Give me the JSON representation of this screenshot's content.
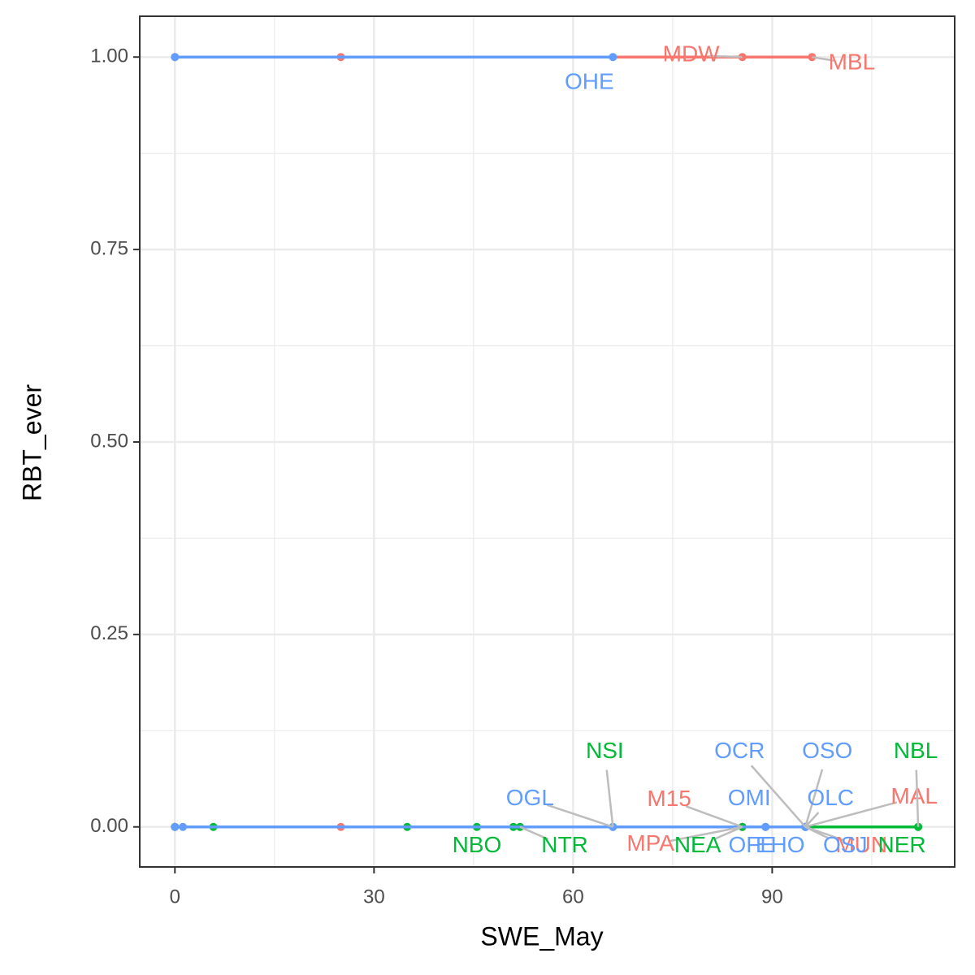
{
  "chart_data": {
    "type": "line",
    "x_label": "SWE_May",
    "y_label": "RBT_ever",
    "xlim": [
      -5.3,
      117.5
    ],
    "ylim": [
      -0.052,
      1.053
    ],
    "xticks": [
      0,
      30,
      60,
      90
    ],
    "yticks": [
      {
        "value": 0,
        "label": "0.00"
      },
      {
        "value": 0.25,
        "label": "0.25"
      },
      {
        "value": 0.5,
        "label": "0.50"
      },
      {
        "value": 0.75,
        "label": "0.75"
      },
      {
        "value": 1,
        "label": "1.00"
      }
    ],
    "x_minor_grid": [
      15,
      45,
      75,
      105
    ],
    "y_minor_grid": [
      0.125,
      0.375,
      0.625,
      0.875
    ],
    "grid": true,
    "series": [
      {
        "color": "#F8766D",
        "x": [
          0,
          25,
          85.5,
          96,
          null,
          0,
          25,
          85.5,
          85.5,
          95,
          95
        ],
        "values": [
          1,
          1,
          1,
          1,
          null,
          0,
          0,
          0,
          0,
          0,
          0
        ],
        "labels": [
          null,
          null,
          "MDW",
          "MBL",
          null,
          null,
          null,
          "M15",
          "MPA",
          "MAL",
          "MUN"
        ]
      },
      {
        "color": "#00BA38",
        "x": [
          0,
          5.8,
          35,
          45.5,
          51,
          52,
          66,
          85.5,
          112,
          112
        ],
        "values": [
          0,
          0,
          0,
          0,
          0,
          0,
          0,
          0,
          0,
          0
        ],
        "labels": [
          null,
          null,
          null,
          "NBO",
          null,
          "NTR",
          "NSI",
          "NEA",
          "NBL",
          "NER"
        ]
      },
      {
        "color": "#619CFF",
        "x": [
          0,
          66,
          null,
          0,
          1.2,
          66,
          89,
          89,
          95,
          95,
          95,
          95,
          95
        ],
        "values": [
          1,
          1,
          null,
          0,
          0,
          0,
          0,
          0,
          0,
          0,
          0,
          0,
          0
        ],
        "labels": [
          null,
          "OHE",
          null,
          null,
          null,
          "OGL",
          "OMI",
          "OFE",
          "OCR",
          "OSO",
          "OLC",
          "OSJ",
          "EHO"
        ]
      }
    ]
  }
}
